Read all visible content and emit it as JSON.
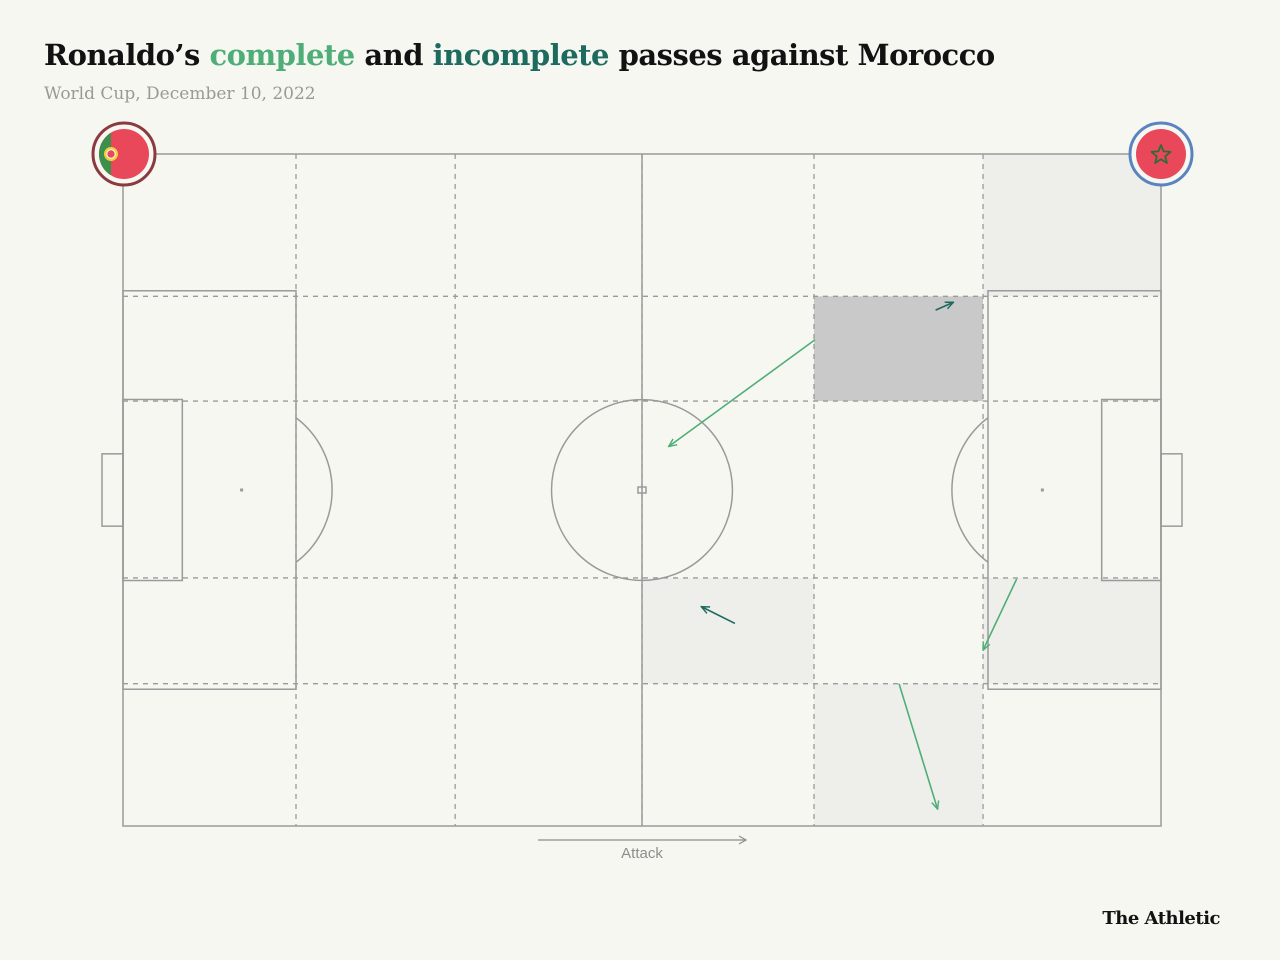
{
  "title": {
    "prefix": "Ronaldo’s ",
    "complete": "complete",
    "middle": " and ",
    "incomplete": "incomplete",
    "suffix": " passes against Morocco"
  },
  "subtitle": "World Cup, December 10, 2022",
  "brand": "The Athletic",
  "attack_label": "Attack",
  "colors": {
    "complete": "#4fae78",
    "incomplete": "#1d6a5e",
    "pitch_lines": "#9a9a9a",
    "zone_light": "#eeeeea",
    "zone_dark": "#c9c9c9",
    "background": "#f7f7f2"
  },
  "teams": {
    "left": {
      "icon": "portugal-flag-icon",
      "ring_color": "#8b3a3f"
    },
    "right": {
      "icon": "morocco-flag-icon",
      "ring_color": "#5a84c0"
    }
  },
  "chart_data": {
    "type": "pass_map",
    "title": "Ronaldo’s complete and incomplete passes against Morocco",
    "subtitle": "World Cup, December 10, 2022",
    "direction_label": "Attack",
    "pitch": {
      "length": 105,
      "width": 68
    },
    "zone_columns": [
      0,
      17.5,
      33.6,
      52.5,
      69.9,
      87.0,
      105
    ],
    "zone_rows": [
      0,
      14.4,
      25.0,
      42.9,
      53.6,
      68
    ],
    "shaded_zones": [
      {
        "col": 4,
        "row": 1,
        "shade": "dark"
      },
      {
        "col": 5,
        "row": 0,
        "shade": "light"
      },
      {
        "col": 3,
        "row": 3,
        "shade": "light"
      },
      {
        "col": 5,
        "row": 3,
        "shade": "light"
      },
      {
        "col": 4,
        "row": 4,
        "shade": "light"
      }
    ],
    "passes": [
      {
        "outcome": "complete",
        "start": [
          70.0,
          18.8
        ],
        "end": [
          55.2,
          29.6
        ]
      },
      {
        "outcome": "complete",
        "start": [
          90.4,
          43.0
        ],
        "end": [
          87.0,
          50.2
        ]
      },
      {
        "outcome": "complete",
        "start": [
          78.5,
          53.6
        ],
        "end": [
          82.4,
          66.3
        ]
      },
      {
        "outcome": "incomplete",
        "start": [
          82.2,
          15.8
        ],
        "end": [
          84.0,
          15.0
        ]
      },
      {
        "outcome": "incomplete",
        "start": [
          61.9,
          47.5
        ],
        "end": [
          58.5,
          45.8
        ]
      }
    ]
  }
}
